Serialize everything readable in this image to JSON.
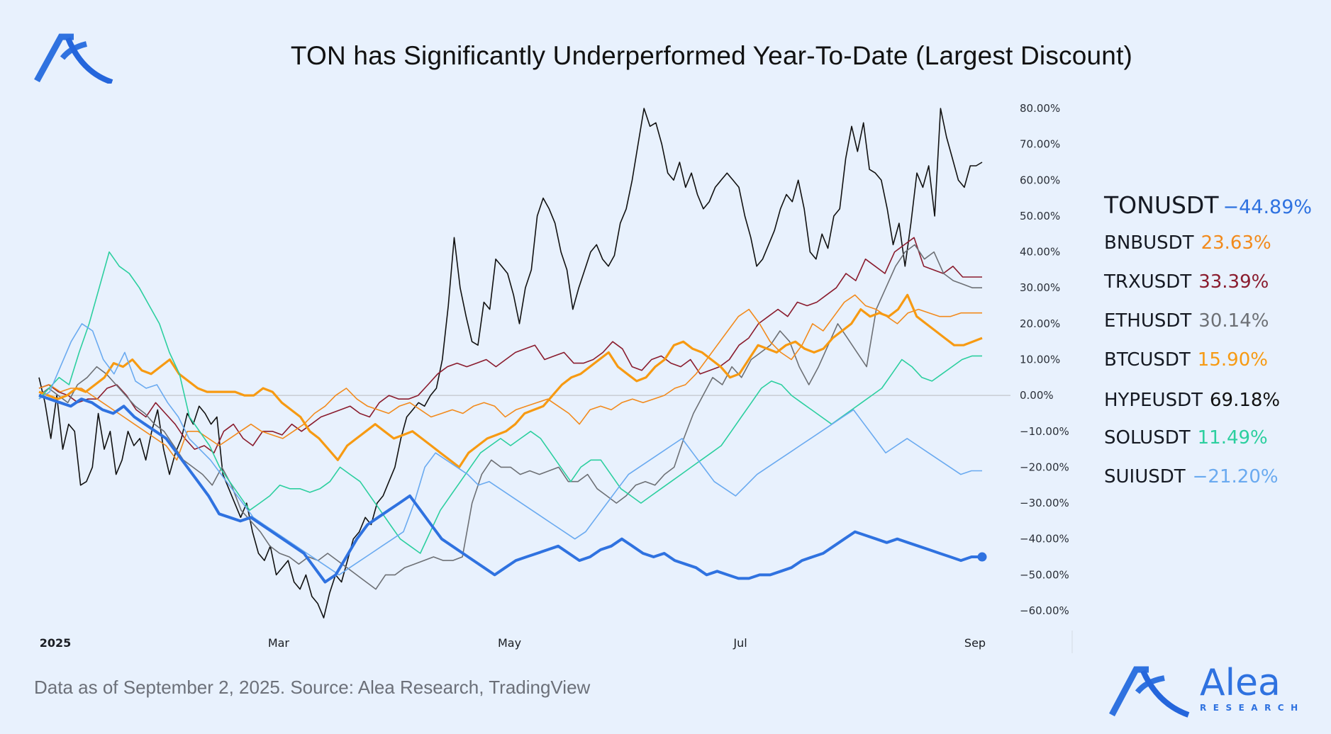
{
  "brand": {
    "name": "Alea",
    "tagline": "RESEARCH",
    "color": "#2f72e0"
  },
  "footer": {
    "source": "Data as of September 2, 2025. Source: Alea Research, TradingView"
  },
  "legend": [
    {
      "name": "TONUSDT",
      "value": "−44.89%",
      "color": "#2f72e0"
    },
    {
      "name": "BNBUSDT",
      "value": "23.63%",
      "color": "#f28a1c"
    },
    {
      "name": "TRXUSDT",
      "value": "33.39%",
      "color": "#8a1c2e"
    },
    {
      "name": "ETHUSDT",
      "value": "30.14%",
      "color": "#6d7075"
    },
    {
      "name": "BTCUSDT",
      "value": "15.90%",
      "color": "#f79a12"
    },
    {
      "name": "HYPEUSDT",
      "value": "69.18%",
      "color": "#111111"
    },
    {
      "name": "SOLUSDT",
      "value": "11.49%",
      "color": "#2ccf9f"
    },
    {
      "name": "SUIUSDT",
      "value": "−21.20%",
      "color": "#6aaaf0"
    }
  ],
  "chart_data": {
    "type": "line",
    "title": "TON has Significantly Underperformed Year-To-Date (Largest Discount)",
    "xlabel": "",
    "ylabel": "",
    "ylim": [
      -60,
      80
    ],
    "yticks": [
      "80.00%",
      "70.00%",
      "60.00%",
      "50.00%",
      "40.00%",
      "30.00%",
      "20.00%",
      "10.00%",
      "0.00%",
      "−10.00%",
      "−20.00%",
      "−30.00%",
      "−40.00%",
      "−50.00%",
      "−60.00%"
    ],
    "ytick_values": [
      80,
      70,
      60,
      50,
      40,
      30,
      20,
      10,
      0,
      -10,
      -20,
      -30,
      -40,
      -50,
      -60
    ],
    "xticks": [
      {
        "label": "2025",
        "day": 0,
        "bold": true
      },
      {
        "label": "Mar",
        "day": 59,
        "bold": false
      },
      {
        "label": "May",
        "day": 120,
        "bold": false
      },
      {
        "label": "Jul",
        "day": 181,
        "bold": false
      },
      {
        "label": "Sep",
        "day": 243,
        "bold": false
      }
    ],
    "x_days_range": [
      0,
      244
    ],
    "zero_line": true,
    "grid": false,
    "legend_position": "right",
    "series": [
      {
        "name": "HYPEUSDT",
        "color": "#111111",
        "width": 1.6,
        "final": 69.18,
        "values": [
          5,
          -2,
          -12,
          0,
          -15,
          -8,
          -10,
          -25,
          -24,
          -20,
          -5,
          -15,
          -10,
          -22,
          -18,
          -10,
          -14,
          -12,
          -18,
          -10,
          -4,
          -15,
          -22,
          -16,
          -12,
          -5,
          -8,
          -3,
          -5,
          -8,
          -6,
          -22,
          -26,
          -30,
          -34,
          -30,
          -38,
          -44,
          -46,
          -42,
          -50,
          -48,
          -46,
          -52,
          -54,
          -50,
          -56,
          -58,
          -62,
          -55,
          -50,
          -52,
          -46,
          -40,
          -38,
          -34,
          -36,
          -30,
          -28,
          -24,
          -20,
          -12,
          -6,
          -4,
          -2,
          -3,
          0,
          2,
          10,
          25,
          44,
          30,
          22,
          15,
          14,
          26,
          24,
          38,
          36,
          34,
          28,
          20,
          30,
          35,
          50,
          55,
          52,
          48,
          40,
          35,
          24,
          30,
          35,
          40,
          42,
          38,
          36,
          39,
          48,
          52,
          60,
          70,
          80,
          75,
          76,
          70,
          62,
          60,
          65,
          58,
          62,
          56,
          52,
          54,
          58,
          60,
          62,
          60,
          58,
          50,
          44,
          36,
          38,
          42,
          46,
          52,
          56,
          54,
          60,
          52,
          40,
          38,
          45,
          41,
          50,
          52,
          66,
          75,
          68,
          76,
          63,
          62,
          60,
          52,
          42,
          48,
          36,
          48,
          62,
          58,
          64,
          50,
          80,
          72,
          66,
          60,
          58,
          64,
          64,
          65
        ]
      },
      {
        "name": "TRXUSDT",
        "color": "#8a1c2e",
        "width": 1.6,
        "final": 33.39,
        "values": [
          2,
          3,
          1,
          0,
          -2,
          -1,
          -1,
          2,
          3,
          0,
          -4,
          -6,
          -2,
          -5,
          -8,
          -12,
          -15,
          -14,
          -16,
          -10,
          -8,
          -12,
          -14,
          -10,
          -10,
          -11,
          -8,
          -10,
          -8,
          -6,
          -5,
          -4,
          -3,
          -5,
          -6,
          -2,
          0,
          -1,
          -1,
          0,
          3,
          6,
          8,
          9,
          8,
          9,
          10,
          8,
          10,
          12,
          13,
          14,
          10,
          11,
          12,
          9,
          9,
          10,
          12,
          15,
          13,
          8,
          7,
          10,
          11,
          9,
          8,
          10,
          6,
          7,
          8,
          10,
          14,
          16,
          20,
          22,
          24,
          22,
          26,
          25,
          26,
          28,
          30,
          34,
          32,
          38,
          36,
          34,
          40,
          42,
          44,
          36,
          35,
          34,
          36,
          33,
          33,
          33
        ]
      },
      {
        "name": "ETHUSDT",
        "color": "#6d7075",
        "width": 1.6,
        "final": 30.14,
        "values": [
          0,
          2,
          0,
          -2,
          3,
          5,
          8,
          6,
          3,
          0,
          -3,
          -5,
          -8,
          -10,
          -14,
          -18,
          -20,
          -22,
          -25,
          -20,
          -25,
          -32,
          -35,
          -38,
          -42,
          -44,
          -45,
          -47,
          -45,
          -46,
          -44,
          -46,
          -48,
          -50,
          -52,
          -54,
          -50,
          -50,
          -48,
          -47,
          -46,
          -45,
          -46,
          -46,
          -45,
          -30,
          -22,
          -18,
          -20,
          -20,
          -22,
          -21,
          -22,
          -21,
          -20,
          -24,
          -24,
          -22,
          -26,
          -28,
          -30,
          -28,
          -25,
          -24,
          -25,
          -22,
          -20,
          -12,
          -5,
          0,
          5,
          3,
          8,
          5,
          10,
          12,
          14,
          18,
          15,
          8,
          3,
          8,
          14,
          20,
          16,
          12,
          8,
          24,
          30,
          36,
          40,
          42,
          38,
          40,
          34,
          32,
          31,
          30,
          30
        ]
      },
      {
        "name": "BNBUSDT",
        "color": "#f28a1c",
        "width": 1.6,
        "final": 23.63,
        "values": [
          2,
          3,
          1,
          2,
          2,
          0,
          -2,
          -4,
          -6,
          -8,
          -10,
          -12,
          -14,
          -18,
          -10,
          -10,
          -12,
          -14,
          -12,
          -10,
          -8,
          -10,
          -11,
          -12,
          -10,
          -8,
          -5,
          -3,
          0,
          2,
          -1,
          -3,
          -4,
          -5,
          -3,
          -2,
          -4,
          -6,
          -5,
          -4,
          -5,
          -3,
          -2,
          -3,
          -6,
          -4,
          -3,
          -2,
          -1,
          -3,
          -5,
          -8,
          -4,
          -3,
          -4,
          -2,
          -1,
          -2,
          -1,
          0,
          2,
          3,
          6,
          10,
          14,
          18,
          22,
          24,
          20,
          15,
          12,
          10,
          14,
          20,
          18,
          22,
          26,
          28,
          25,
          24,
          22,
          20,
          23,
          24,
          23,
          22,
          22,
          23,
          23,
          23
        ]
      },
      {
        "name": "BTCUSDT",
        "color": "#f79a12",
        "width": 3.2,
        "final": 15.9,
        "values": [
          1,
          0,
          -1,
          0,
          2,
          1,
          3,
          5,
          9,
          8,
          10,
          7,
          6,
          8,
          10,
          6,
          4,
          2,
          1,
          1,
          1,
          1,
          0,
          0,
          2,
          1,
          -2,
          -4,
          -6,
          -10,
          -12,
          -15,
          -18,
          -14,
          -12,
          -10,
          -8,
          -10,
          -12,
          -11,
          -10,
          -12,
          -14,
          -16,
          -18,
          -20,
          -16,
          -14,
          -12,
          -11,
          -10,
          -8,
          -5,
          -4,
          -3,
          0,
          3,
          5,
          6,
          8,
          10,
          12,
          8,
          6,
          4,
          5,
          8,
          10,
          14,
          15,
          13,
          12,
          10,
          8,
          5,
          6,
          10,
          14,
          13,
          12,
          14,
          15,
          13,
          12,
          13,
          16,
          18,
          20,
          24,
          22,
          23,
          22,
          24,
          28,
          22,
          20,
          18,
          16,
          14,
          14,
          15,
          16
        ]
      },
      {
        "name": "SOLUSDT",
        "color": "#2ccf9f",
        "width": 1.6,
        "final": 11.49,
        "values": [
          -1,
          2,
          5,
          3,
          12,
          20,
          30,
          40,
          36,
          34,
          30,
          25,
          20,
          12,
          6,
          -6,
          -10,
          -14,
          -20,
          -24,
          -28,
          -32,
          -30,
          -28,
          -25,
          -26,
          -26,
          -27,
          -26,
          -24,
          -20,
          -22,
          -24,
          -28,
          -32,
          -36,
          -40,
          -42,
          -44,
          -38,
          -32,
          -28,
          -24,
          -20,
          -16,
          -14,
          -12,
          -14,
          -12,
          -10,
          -12,
          -16,
          -20,
          -24,
          -20,
          -18,
          -18,
          -22,
          -26,
          -28,
          -30,
          -28,
          -26,
          -24,
          -22,
          -20,
          -18,
          -16,
          -14,
          -10,
          -6,
          -2,
          2,
          4,
          3,
          0,
          -2,
          -4,
          -6,
          -8,
          -6,
          -4,
          -2,
          0,
          2,
          6,
          10,
          8,
          5,
          4,
          6,
          8,
          10,
          11,
          11
        ]
      },
      {
        "name": "SUIUSDT",
        "color": "#6aaaf0",
        "width": 1.6,
        "final": -21.2,
        "values": [
          -1,
          1,
          8,
          15,
          20,
          18,
          10,
          6,
          12,
          4,
          2,
          3,
          -2,
          -6,
          -12,
          -15,
          -18,
          -22,
          -26,
          -30,
          -34,
          -36,
          -38,
          -40,
          -42,
          -44,
          -46,
          -48,
          -50,
          -48,
          -46,
          -44,
          -42,
          -40,
          -38,
          -30,
          -20,
          -16,
          -18,
          -20,
          -22,
          -25,
          -24,
          -26,
          -28,
          -30,
          -32,
          -34,
          -36,
          -38,
          -40,
          -38,
          -34,
          -30,
          -26,
          -22,
          -20,
          -18,
          -16,
          -14,
          -12,
          -16,
          -20,
          -24,
          -26,
          -28,
          -25,
          -22,
          -20,
          -18,
          -16,
          -14,
          -12,
          -10,
          -8,
          -6,
          -4,
          -8,
          -12,
          -16,
          -14,
          -12,
          -14,
          -16,
          -18,
          -20,
          -22,
          -21,
          -21
        ]
      },
      {
        "name": "TONUSDT",
        "color": "#2f72e0",
        "width": 4.0,
        "final": -44.89,
        "end_marker": true,
        "values": [
          0,
          -1,
          -2,
          -3,
          -1,
          -2,
          -4,
          -5,
          -3,
          -6,
          -8,
          -10,
          -12,
          -16,
          -20,
          -24,
          -28,
          -33,
          -34,
          -35,
          -34,
          -36,
          -38,
          -40,
          -42,
          -44,
          -48,
          -52,
          -50,
          -45,
          -40,
          -36,
          -34,
          -32,
          -30,
          -28,
          -32,
          -36,
          -40,
          -42,
          -44,
          -46,
          -48,
          -50,
          -48,
          -46,
          -45,
          -44,
          -43,
          -42,
          -44,
          -46,
          -45,
          -43,
          -42,
          -40,
          -42,
          -44,
          -45,
          -44,
          -46,
          -47,
          -48,
          -50,
          -49,
          -50,
          -51,
          -51,
          -50,
          -50,
          -49,
          -48,
          -46,
          -45,
          -44,
          -42,
          -40,
          -38,
          -39,
          -40,
          -41,
          -40,
          -41,
          -42,
          -43,
          -44,
          -45,
          -46,
          -45,
          -45
        ]
      }
    ]
  }
}
